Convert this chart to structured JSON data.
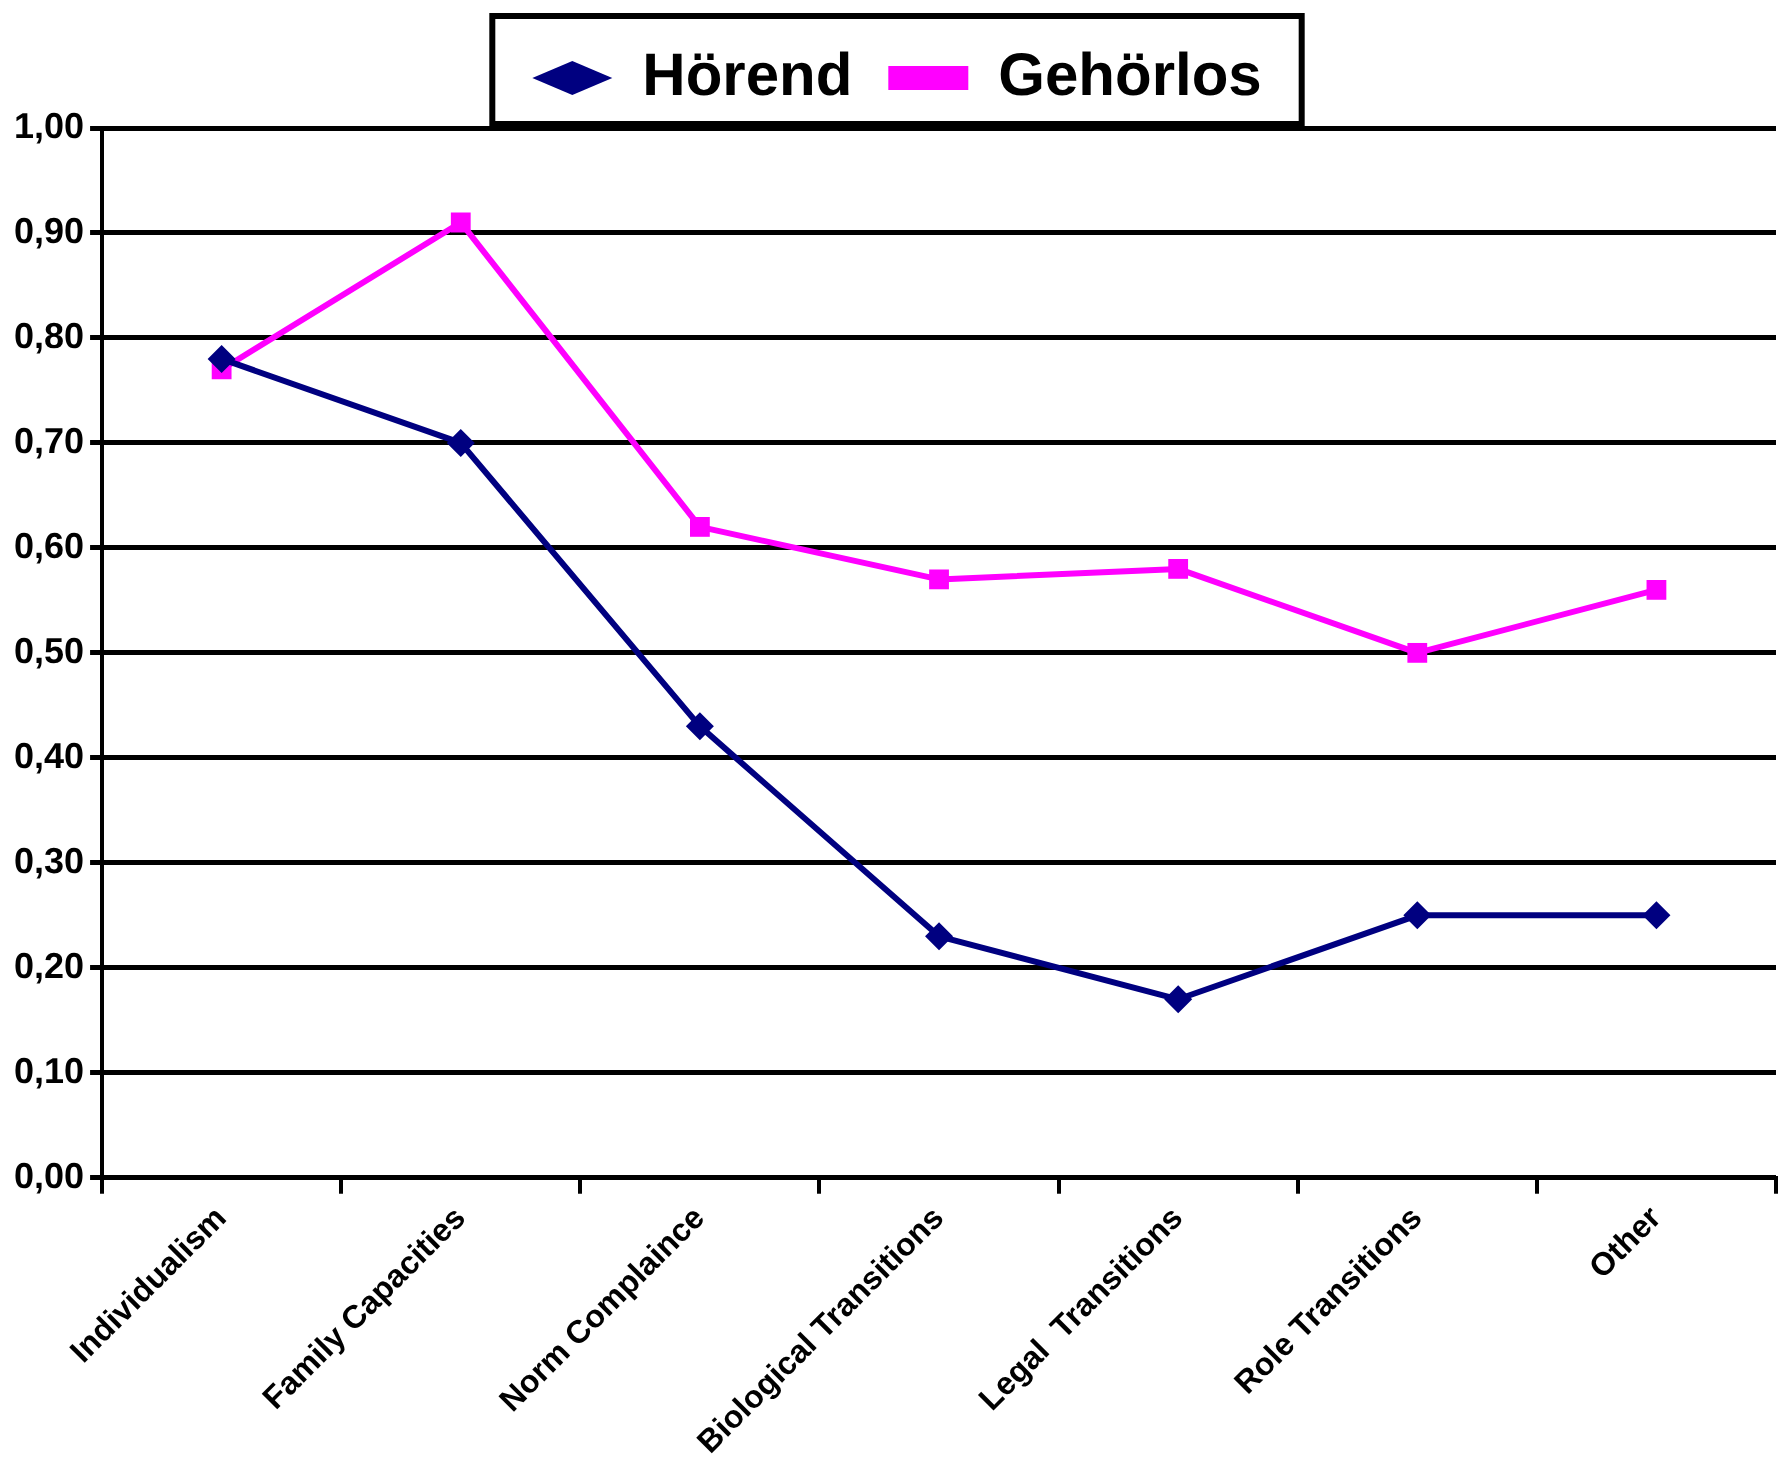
{
  "chart_data": {
    "type": "line",
    "categories": [
      "Individualism",
      "Family Capacities",
      "Norm Complaince",
      "Biological Transitions",
      "Legal  Transitions",
      "Role Transitions",
      "Other"
    ],
    "series": [
      {
        "name": "Hörend",
        "color": "#000080",
        "marker": "diamond",
        "values": [
          0.78,
          0.7,
          0.43,
          0.23,
          0.17,
          0.25,
          0.25
        ]
      },
      {
        "name": "Gehörlos",
        "color": "#ff00ff",
        "marker": "square",
        "values": [
          0.77,
          0.91,
          0.62,
          0.57,
          0.58,
          0.5,
          0.56
        ]
      }
    ],
    "ylim": [
      0,
      1
    ],
    "yticks": [
      {
        "value": 0,
        "label": "0,00"
      },
      {
        "value": 0.1,
        "label": "0,10"
      },
      {
        "value": 0.2,
        "label": "0,20"
      },
      {
        "value": 0.3,
        "label": "0,30"
      },
      {
        "value": 0.4,
        "label": "0,40"
      },
      {
        "value": 0.5,
        "label": "0,50"
      },
      {
        "value": 0.6,
        "label": "0,60"
      },
      {
        "value": 0.7,
        "label": "0,70"
      },
      {
        "value": 0.8,
        "label": "0,80"
      },
      {
        "value": 0.9,
        "label": "0,90"
      },
      {
        "value": 1,
        "label": "1,00"
      }
    ],
    "grid": "y",
    "legend": "top",
    "line_style": "solid"
  }
}
